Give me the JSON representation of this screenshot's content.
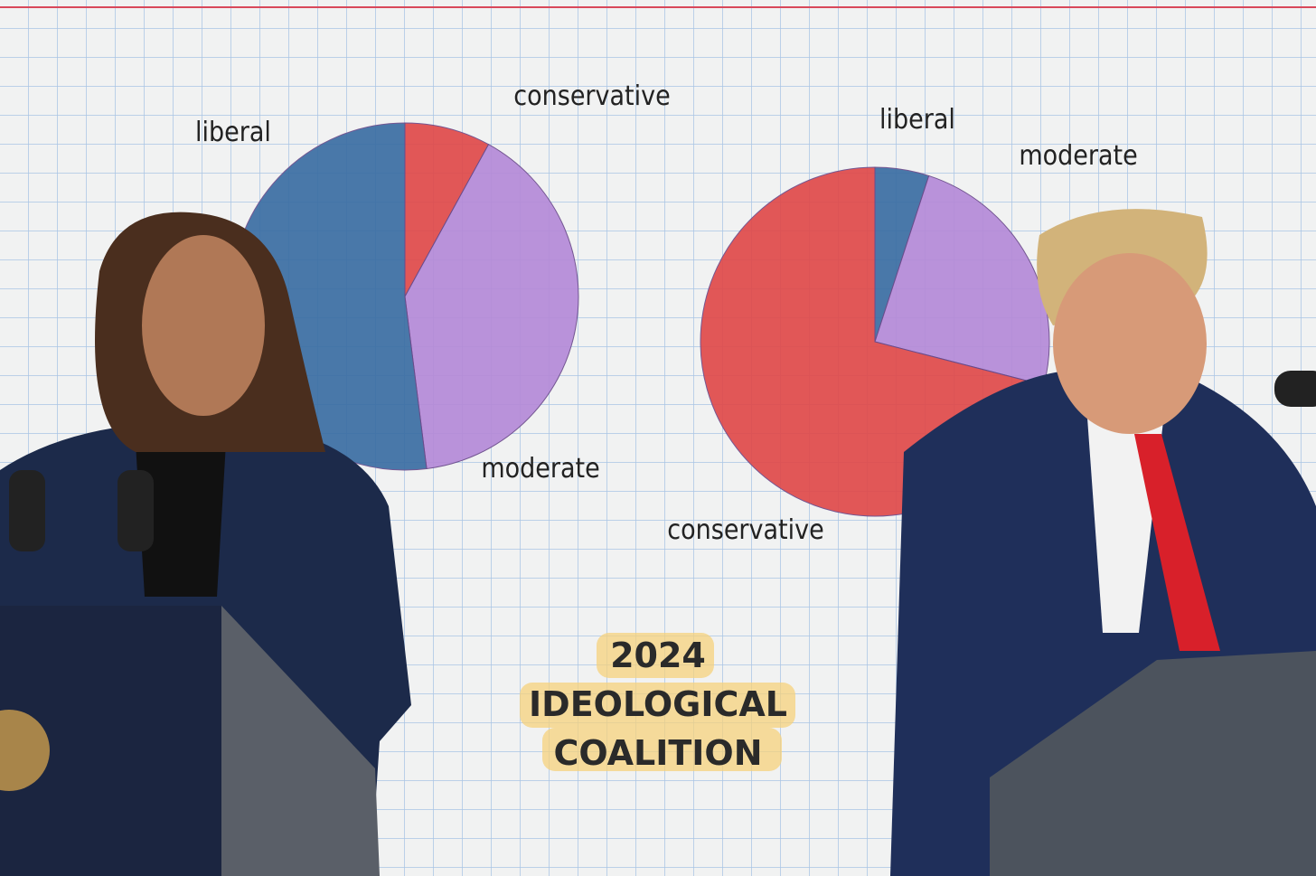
{
  "chart_data": [
    {
      "type": "pie",
      "categories": [
        "conservative",
        "moderate",
        "liberal"
      ],
      "values": [
        8,
        40,
        52
      ],
      "colors": [
        "#e04a4a",
        "#b58ad8",
        "#3b6ea3"
      ]
    },
    {
      "type": "pie",
      "categories": [
        "liberal",
        "moderate",
        "conservative"
      ],
      "values": [
        5,
        24,
        71
      ],
      "colors": [
        "#3b6ea3",
        "#b58ad8",
        "#e04a4a"
      ]
    }
  ],
  "headline": [
    "2024",
    "IDEOLOGICAL",
    "COALITION"
  ]
}
